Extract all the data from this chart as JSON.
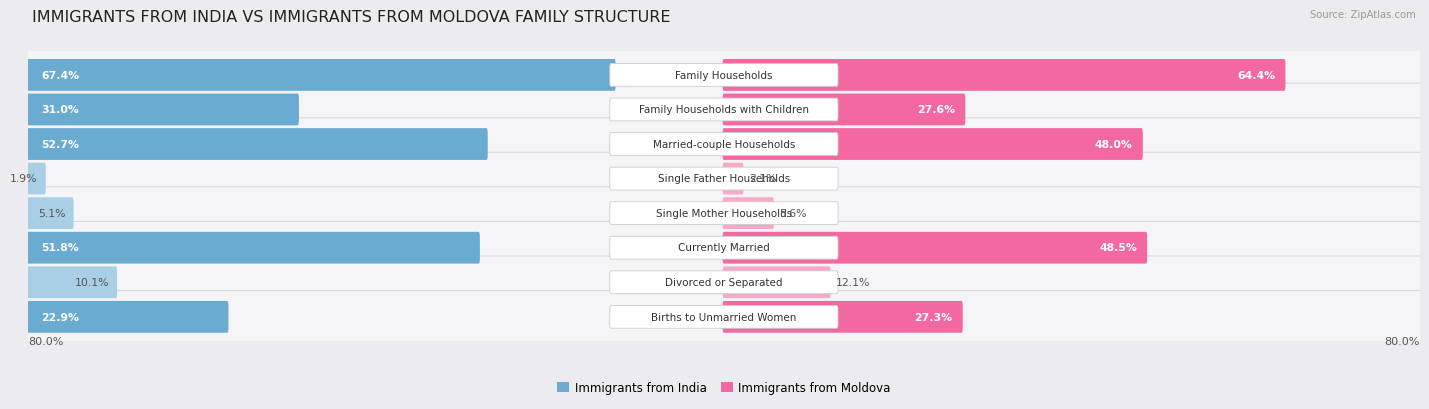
{
  "title": "IMMIGRANTS FROM INDIA VS IMMIGRANTS FROM MOLDOVA FAMILY STRUCTURE",
  "source": "Source: ZipAtlas.com",
  "categories": [
    "Family Households",
    "Family Households with Children",
    "Married-couple Households",
    "Single Father Households",
    "Single Mother Households",
    "Currently Married",
    "Divorced or Separated",
    "Births to Unmarried Women"
  ],
  "india_values": [
    67.4,
    31.0,
    52.7,
    1.9,
    5.1,
    51.8,
    10.1,
    22.9
  ],
  "moldova_values": [
    64.4,
    27.6,
    48.0,
    2.1,
    5.6,
    48.5,
    12.1,
    27.3
  ],
  "india_color": "#6aabd2",
  "moldova_color": "#f368a0",
  "india_color_light": "#a8cfe5",
  "moldova_color_light": "#f9a8c9",
  "max_value": 80.0,
  "india_label": "Immigrants from India",
  "moldova_label": "Immigrants from Moldova",
  "bg_color": "#ebebf0",
  "row_bg_color": "#f5f5f8",
  "row_border_color": "#d8d8de",
  "title_fontsize": 11.5,
  "label_fontsize": 7.5,
  "value_fontsize": 7.8,
  "axis_label_fontsize": 8.0,
  "large_threshold": 20.0,
  "small_threshold": 10.0
}
